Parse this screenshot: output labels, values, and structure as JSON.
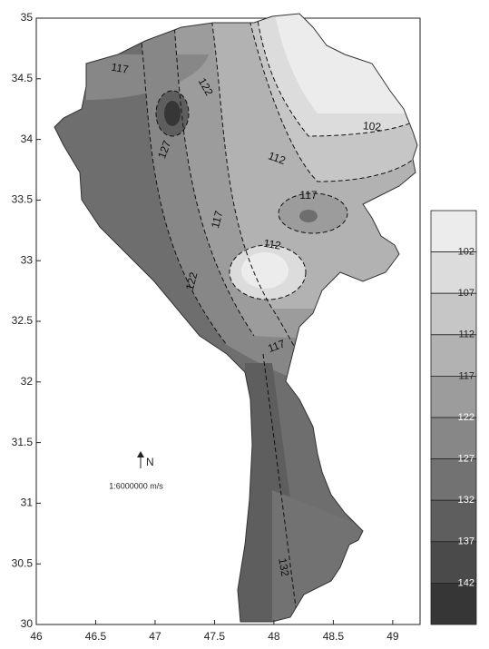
{
  "map": {
    "xlim": [
      46,
      49.23
    ],
    "ylim": [
      30,
      35
    ],
    "xticks": [
      46,
      46.5,
      47,
      47.5,
      48,
      48.5,
      49
    ],
    "yticks": [
      30,
      30.5,
      31,
      31.5,
      32,
      32.5,
      33,
      33.5,
      34,
      34.5,
      35
    ],
    "contour_labels": [
      117,
      122,
      127,
      102,
      112,
      117,
      117,
      112,
      122,
      117,
      132
    ],
    "north": "N",
    "scale": "1:6000000 m/s",
    "legend": {
      "labels": [
        102,
        107,
        112,
        117,
        122,
        127,
        132,
        137,
        142
      ],
      "colors": [
        "#ececec",
        "#dcdcdc",
        "#c6c6c6",
        "#b2b2b2",
        "#9c9c9c",
        "#878787",
        "#727272",
        "#5e5e5e",
        "#4a4a4a",
        "#363636"
      ]
    }
  }
}
